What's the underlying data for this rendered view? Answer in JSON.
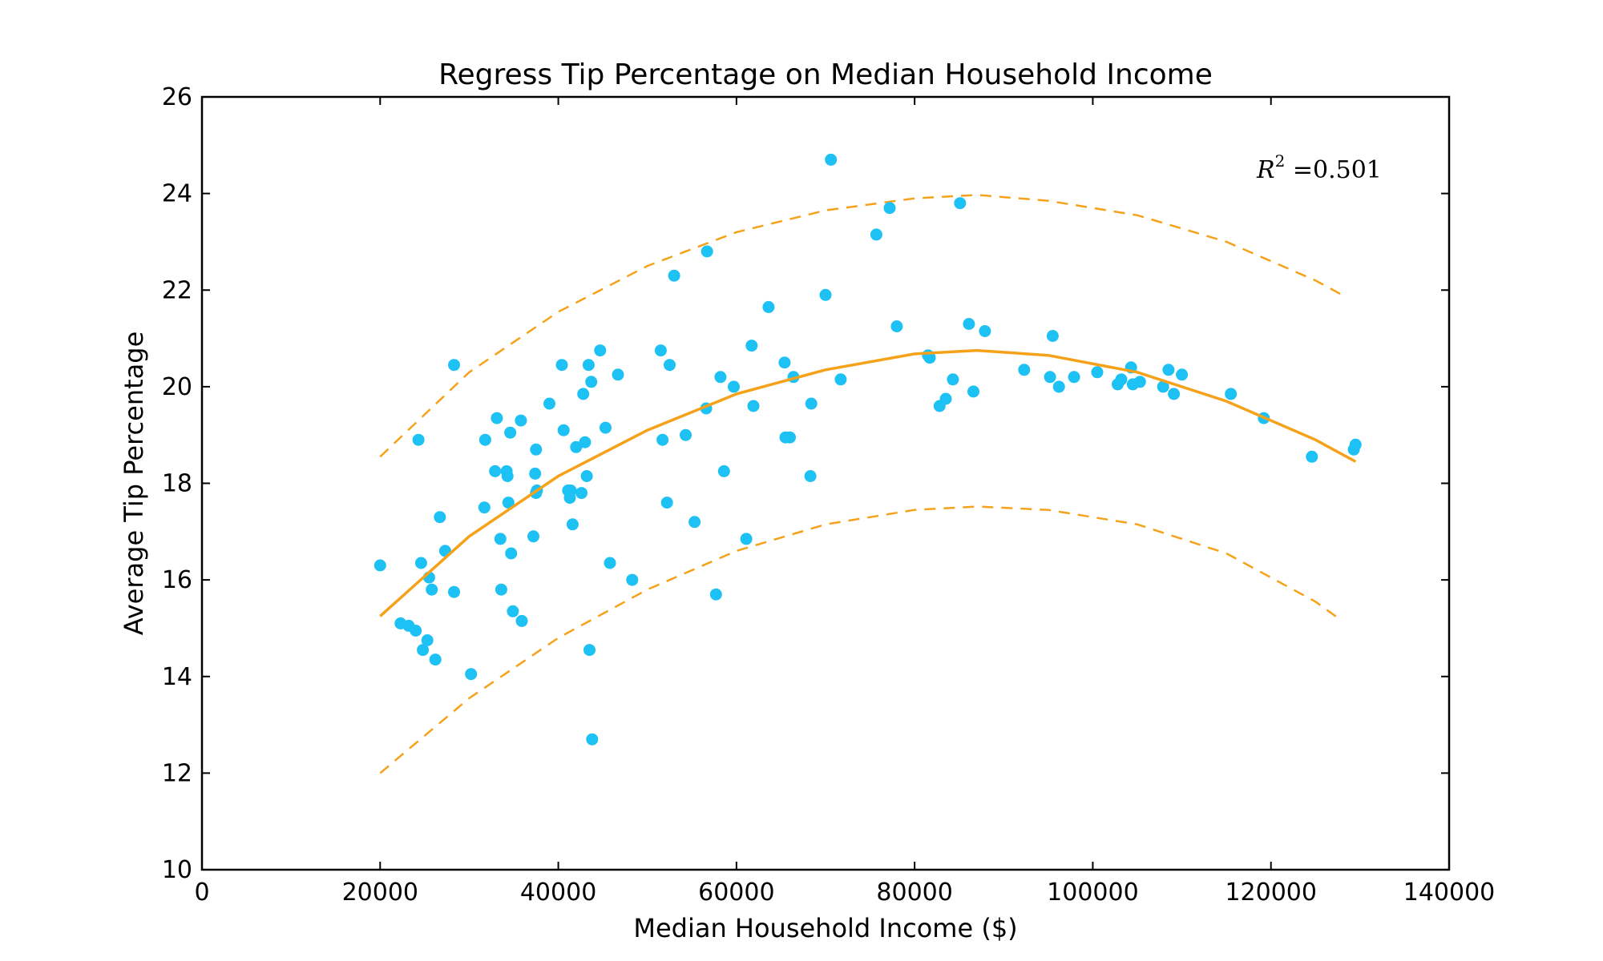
{
  "chart_data": {
    "type": "scatter",
    "title": "Regress Tip Percentage on Median Household Income",
    "xlabel": "Median Household Income ($)",
    "ylabel": "Average Tip Percentage",
    "xlim": [
      0,
      140000
    ],
    "ylim": [
      10,
      26
    ],
    "xticks": [
      0,
      20000,
      40000,
      60000,
      80000,
      100000,
      120000,
      140000
    ],
    "yticks": [
      10,
      12,
      14,
      16,
      18,
      20,
      22,
      24,
      26
    ],
    "grid": false,
    "annotation": {
      "symbol": "R",
      "superscript": "2",
      "text": " =0.501"
    },
    "colors": {
      "points": "#1ec1f3",
      "fit": "#f5a21a"
    },
    "fit": {
      "x": [
        20000,
        30000,
        40000,
        50000,
        60000,
        70000,
        80000,
        87000,
        95000,
        105000,
        115000,
        125000,
        129500
      ],
      "y": [
        15.25,
        16.9,
        18.15,
        19.1,
        19.85,
        20.35,
        20.68,
        20.75,
        20.65,
        20.3,
        19.7,
        18.9,
        18.45
      ]
    },
    "upper_band": {
      "x": [
        20000,
        30000,
        40000,
        50000,
        60000,
        70000,
        80000,
        87000,
        95000,
        105000,
        115000,
        125000,
        128000
      ],
      "y": [
        18.55,
        20.3,
        21.55,
        22.5,
        23.2,
        23.65,
        23.9,
        23.97,
        23.85,
        23.55,
        23.0,
        22.2,
        21.9
      ]
    },
    "lower_band": {
      "x": [
        20000,
        30000,
        40000,
        50000,
        60000,
        70000,
        80000,
        87000,
        95000,
        105000,
        115000,
        125000,
        128000
      ],
      "y": [
        12.0,
        13.55,
        14.8,
        15.8,
        16.6,
        17.15,
        17.45,
        17.52,
        17.45,
        17.15,
        16.55,
        15.55,
        15.15
      ]
    },
    "points": {
      "x": [
        20000,
        22300,
        23200,
        24000,
        24300,
        24600,
        24800,
        25300,
        25500,
        25800,
        26200,
        26700,
        27300,
        28300,
        28300,
        30200,
        31700,
        31800,
        32900,
        33100,
        33500,
        33600,
        34200,
        34300,
        34400,
        34600,
        34700,
        34900,
        35900,
        35800,
        37200,
        37400,
        37500,
        37600,
        37500,
        39000,
        40400,
        40600,
        41100,
        41300,
        41600,
        41400,
        42000,
        42600,
        42800,
        43000,
        43200,
        43400,
        43500,
        43700,
        43800,
        44700,
        45300,
        45800,
        46700,
        48300,
        51500,
        51700,
        52200,
        52500,
        53000,
        54300,
        55300,
        56600,
        56700,
        57700,
        58200,
        58600,
        59700,
        61100,
        61700,
        61900,
        63600,
        65400,
        65500,
        66000,
        66400,
        68300,
        68400,
        70000,
        70600,
        71700,
        75700,
        77200,
        78000,
        81500,
        81700,
        82800,
        83500,
        84300,
        85100,
        86100,
        86600,
        87900,
        92300,
        95200,
        95500,
        96200,
        97900,
        100500,
        102800,
        103200,
        104300,
        104500,
        105300,
        107900,
        108500,
        109100,
        110000,
        115500,
        119200,
        124600,
        129300,
        129500
      ],
      "y": [
        16.3,
        15.1,
        15.05,
        14.95,
        18.9,
        16.35,
        14.55,
        14.75,
        16.05,
        15.8,
        14.35,
        17.3,
        16.6,
        15.75,
        20.45,
        14.05,
        17.5,
        18.9,
        18.25,
        19.35,
        16.85,
        15.8,
        18.25,
        18.15,
        17.6,
        19.05,
        16.55,
        15.35,
        15.15,
        19.3,
        16.9,
        18.2,
        18.7,
        17.85,
        17.8,
        19.65,
        20.45,
        19.1,
        17.85,
        17.7,
        17.15,
        17.85,
        18.75,
        17.8,
        19.85,
        18.85,
        18.15,
        20.45,
        14.55,
        20.1,
        12.7,
        20.75,
        19.15,
        16.35,
        20.25,
        16.0,
        20.75,
        18.9,
        17.6,
        20.45,
        22.3,
        19.0,
        17.2,
        19.55,
        22.8,
        15.7,
        20.2,
        18.25,
        20.0,
        16.85,
        20.85,
        19.6,
        21.65,
        20.5,
        18.95,
        18.95,
        20.2,
        18.15,
        19.65,
        21.9,
        24.7,
        20.15,
        23.15,
        23.7,
        21.25,
        20.65,
        20.6,
        19.6,
        19.75,
        20.15,
        23.8,
        21.3,
        19.9,
        21.15,
        20.35,
        20.2,
        21.05,
        20.0,
        20.2,
        20.3,
        20.05,
        20.15,
        20.4,
        20.05,
        20.1,
        20.0,
        20.35,
        19.85,
        20.25,
        19.85,
        19.35,
        18.55,
        18.7,
        18.8
      ]
    }
  }
}
